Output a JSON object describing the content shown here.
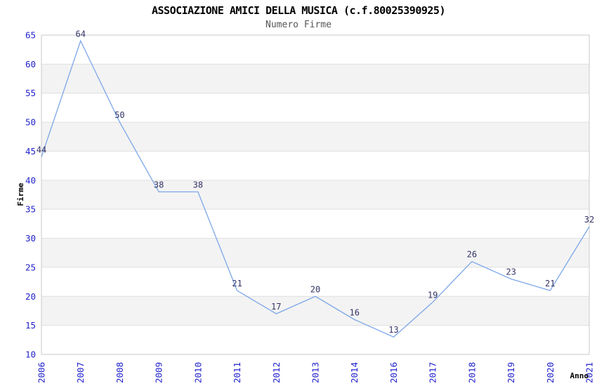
{
  "chart_data": {
    "type": "line",
    "title": "ASSOCIAZIONE AMICI DELLA MUSICA (c.f.80025390925)",
    "subtitle": "Numero Firme",
    "xlabel": "Anno",
    "ylabel": "Firme",
    "categories": [
      "2006",
      "2007",
      "2008",
      "2009",
      "2010",
      "2011",
      "2012",
      "2013",
      "2014",
      "2016",
      "2017",
      "2018",
      "2019",
      "2020",
      "2021"
    ],
    "values": [
      44,
      64,
      50,
      38,
      38,
      21,
      17,
      20,
      16,
      13,
      19,
      26,
      23,
      21,
      32
    ],
    "ylim": [
      10,
      65
    ],
    "yticks": [
      10,
      15,
      20,
      25,
      30,
      35,
      40,
      45,
      50,
      55,
      60,
      65
    ],
    "ytick_step": 5,
    "grid": "horizontal-alternating-bands",
    "legend": "none",
    "data_labels": true,
    "colors": {
      "line": "#7da7e8",
      "tick_label": "#2222cc",
      "data_label": "#333366",
      "band": "#f3f3f3",
      "gridline": "#e0e0e0",
      "plot_border": "#c8c8c8",
      "title": "#000000",
      "subtitle": "#555555",
      "axis_title": "#000000",
      "background": "#ffffff"
    }
  }
}
